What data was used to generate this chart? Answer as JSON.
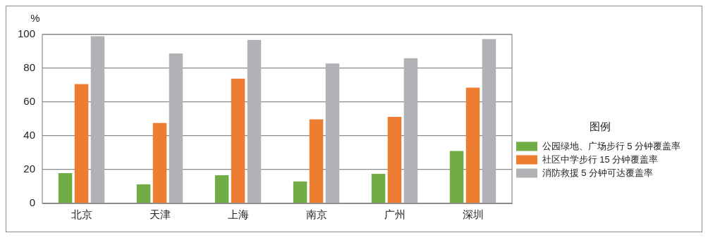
{
  "chart_data": {
    "type": "bar",
    "ylabel": "%",
    "categories": [
      "北京",
      "天津",
      "上海",
      "南京",
      "广州",
      "深圳"
    ],
    "series": [
      {
        "name": "公园绿地、广场步行 5 分钟覆盖率",
        "color": "#70ad47",
        "values": [
          17.9,
          11.3,
          16.7,
          13,
          17.5,
          31
        ]
      },
      {
        "name": "社区中学步行 15 分钟覆盖率",
        "color": "#ed7d31",
        "values": [
          70.6,
          47.6,
          73.9,
          49.8,
          51.2,
          68.5
        ]
      },
      {
        "name": "消防救援 5 分钟可达覆盖率",
        "color": "#b1b2b5",
        "values": [
          99,
          88.7,
          96.8,
          82.8,
          85.9,
          97.3
        ]
      }
    ],
    "ylim": [
      0,
      100
    ],
    "yticks": [
      0,
      20,
      40,
      60,
      80,
      100
    ],
    "grid": "y",
    "legend": "right",
    "legend_title": "图例"
  }
}
